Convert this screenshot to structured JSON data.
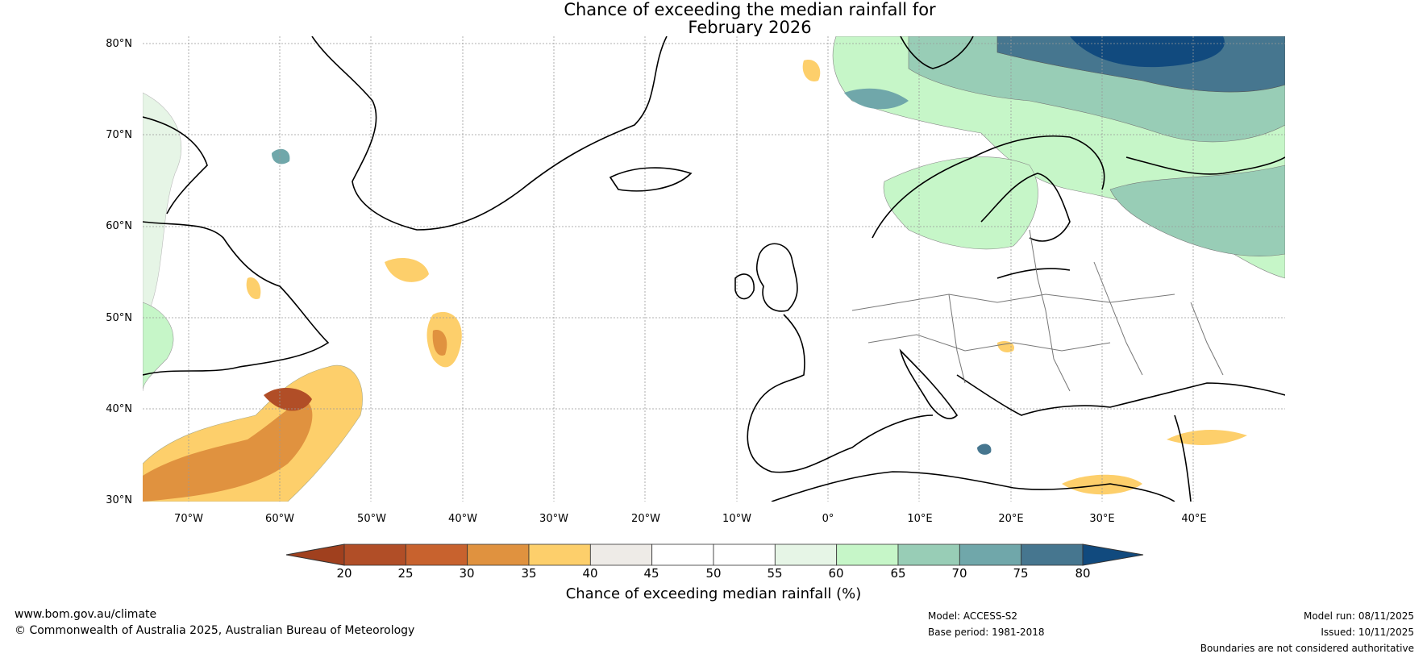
{
  "title": {
    "line1": "Chance of exceeding the median rainfall for",
    "line2": "February 2026"
  },
  "axes": {
    "lat_labels": [
      "80°N",
      "70°N",
      "60°N",
      "50°N",
      "40°N",
      "30°N"
    ],
    "lon_labels": [
      "70°W",
      "60°W",
      "50°W",
      "40°W",
      "30°W",
      "20°W",
      "10°W",
      "0°",
      "10°E",
      "20°E",
      "30°E",
      "40°E"
    ]
  },
  "map": {
    "region": "North Atlantic and Europe",
    "lat_range": [
      30,
      81
    ],
    "lon_range": [
      -75,
      50
    ],
    "graticule": "dotted"
  },
  "colorbar": {
    "ticks": [
      "20",
      "25",
      "30",
      "35",
      "40",
      "45",
      "50",
      "55",
      "60",
      "65",
      "70",
      "75",
      "80"
    ],
    "colors": [
      "#a0401e",
      "#b14e27",
      "#c8622e",
      "#e0923f",
      "#fdcf6b",
      "#eeebe7",
      "#ffffff",
      "#ffffff",
      "#e6f5e6",
      "#c6f6c8",
      "#98cdb6",
      "#70a7aa",
      "#46768f",
      "#114a7e"
    ],
    "label": "Chance of exceeding median rainfall (%)"
  },
  "footer": {
    "website": "www.bom.gov.au/climate",
    "copyright": "© Commonwealth of Australia 2025, Australian Bureau of Meteorology",
    "model": "Model: ACCESS-S2",
    "base_period": "Base period: 1981-2018",
    "model_run": "Model run: 08/11/2025",
    "issued": "Issued: 10/11/2025",
    "disclaimer": "Boundaries are not considered authoritative"
  }
}
